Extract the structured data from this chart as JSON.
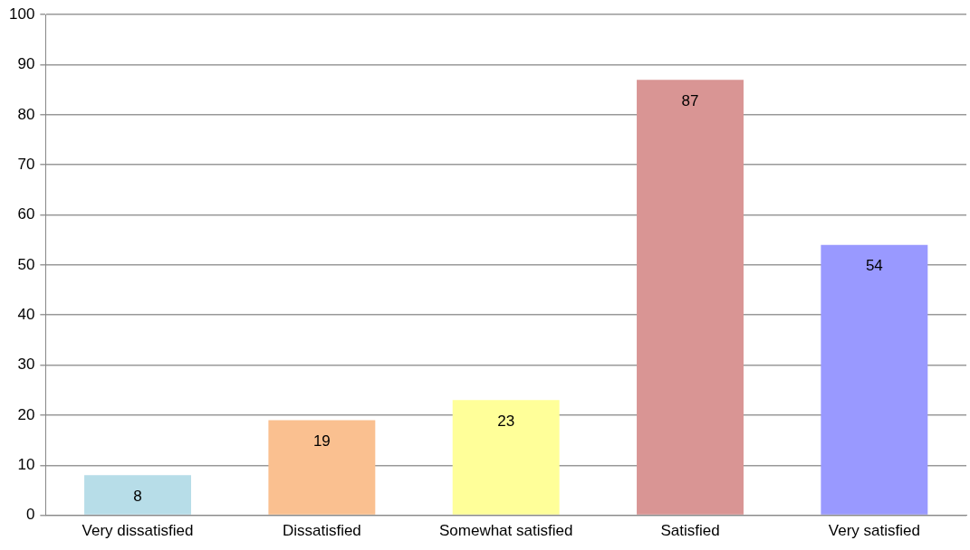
{
  "chart_data": {
    "type": "bar",
    "categories": [
      "Very dissatisfied",
      "Dissatisfied",
      "Somewhat satisfied",
      "Satisfied",
      "Very satisfied"
    ],
    "values": [
      8,
      19,
      23,
      87,
      54
    ],
    "colors": [
      "#b7dde8",
      "#fac090",
      "#ffff99",
      "#d99594",
      "#9999ff"
    ],
    "ylim": [
      0,
      100
    ],
    "yticks": [
      0,
      10,
      20,
      30,
      40,
      50,
      60,
      70,
      80,
      90,
      100
    ],
    "grid": "y",
    "legend": false,
    "data_labels": true
  }
}
